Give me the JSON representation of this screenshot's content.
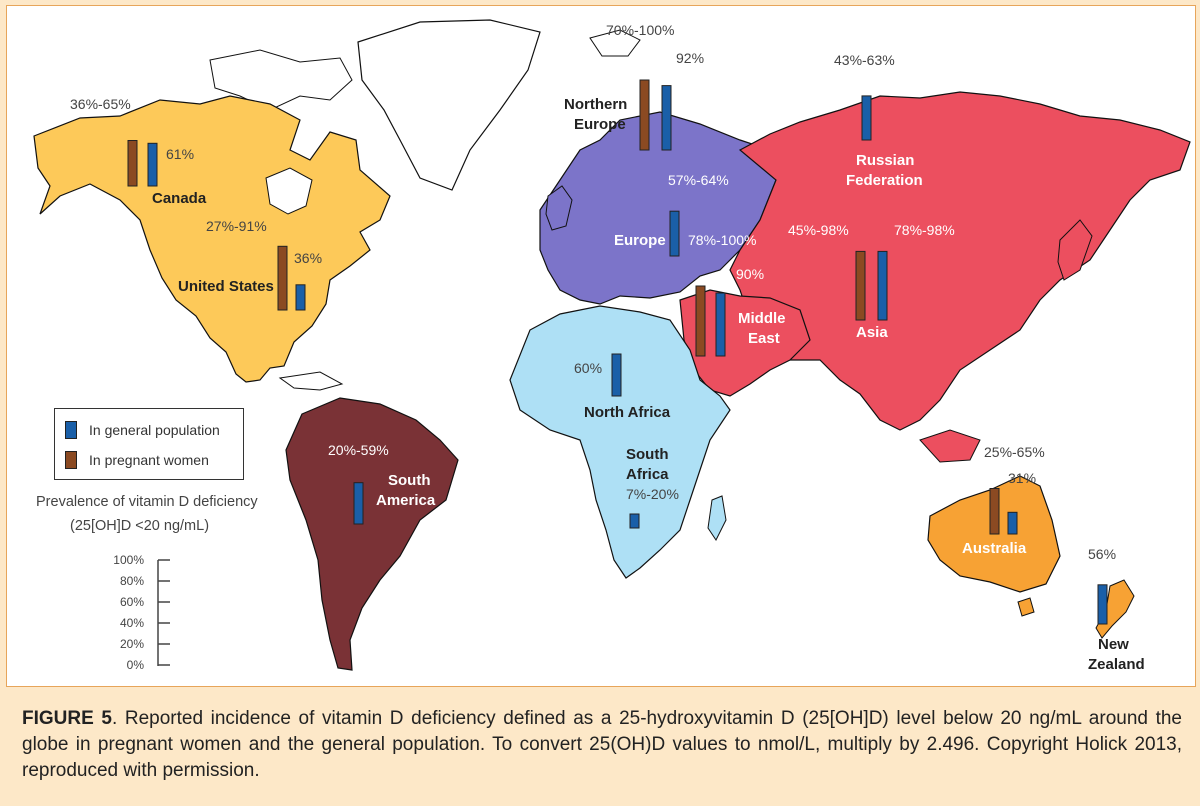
{
  "colors": {
    "north_america": "#fdc959",
    "south_america": "#7a3236",
    "europe": "#7c74c9",
    "asia": "#ec4f5f",
    "africa": "#aee0f5",
    "australia": "#f7a234",
    "other_land": "#ffffff",
    "bar_general": "#1a5fa8",
    "bar_pregnant": "#8b4a22"
  },
  "legend": {
    "general": "In general population",
    "pregnant": "In pregnant women"
  },
  "scale": {
    "title_line1": "Prevalence of vitamin D deficiency",
    "title_line2": "(25[OH]D <20 ng/mL)",
    "ticks": [
      "100%",
      "80%",
      "60%",
      "40%",
      "20%",
      "0%"
    ]
  },
  "regions": [
    {
      "name": "Canada",
      "pregnant_label": "36%-65%",
      "general_label": "61%",
      "pregnant_value": 65,
      "general_value": 61
    },
    {
      "name": "United States",
      "pregnant_label": "27%-91%",
      "general_label": "36%",
      "pregnant_value": 91,
      "general_value": 36
    },
    {
      "name": "South America",
      "pregnant_label": "",
      "general_label": "20%-59%",
      "general_value": 59
    },
    {
      "name": "Northern Europe",
      "pregnant_label": "70%-100%",
      "general_label": "92%",
      "pregnant_value": 100,
      "general_value": 92
    },
    {
      "name": "Europe",
      "pregnant_label": "",
      "general_label": "57%-64%",
      "general_value": 64
    },
    {
      "name": "Middle East",
      "pregnant_label": "78%-100%",
      "general_label": "90%",
      "pregnant_value": 100,
      "general_value": 90
    },
    {
      "name": "North Africa",
      "pregnant_label": "",
      "general_label": "60%",
      "general_value": 60
    },
    {
      "name": "South Africa",
      "pregnant_label": "",
      "general_label": "7%-20%",
      "general_value": 20
    },
    {
      "name": "Russian Federation",
      "pregnant_label": "",
      "general_label": "43%-63%",
      "general_value": 63
    },
    {
      "name": "Asia",
      "pregnant_label": "45%-98%",
      "general_label": "78%-98%",
      "pregnant_value": 98,
      "general_value": 98
    },
    {
      "name": "Australia",
      "pregnant_label": "25%-65%",
      "general_label": "31%",
      "pregnant_value": 65,
      "general_value": 31
    },
    {
      "name": "New Zealand",
      "pregnant_label": "",
      "general_label": "56%",
      "general_value": 56
    }
  ],
  "labels": {
    "canada": "Canada",
    "us": "United States",
    "sa_1": "South",
    "sa_2": "America",
    "ne_1": "Northern",
    "ne_2": "Europe",
    "eu": "Europe",
    "me_1": "Middle",
    "me_2": "East",
    "naf": "North Africa",
    "saf_1": "South",
    "saf_2": "Africa",
    "ru_1": "Russian",
    "ru_2": "Federation",
    "asia": "Asia",
    "aus": "Australia",
    "nz_1": "New",
    "nz_2": "Zealand"
  },
  "caption": {
    "figure": "FIGURE 5",
    "text": ". Reported incidence of vitamin D deficiency defined as a 25-hydroxyvitamin D (25[OH]D) level below 20 ng/mL around the globe in pregnant women and the general population. To convert 25(OH)D values to nmol/L, multiply by 2.496. Copyright Holick 2013, reproduced with permission."
  }
}
